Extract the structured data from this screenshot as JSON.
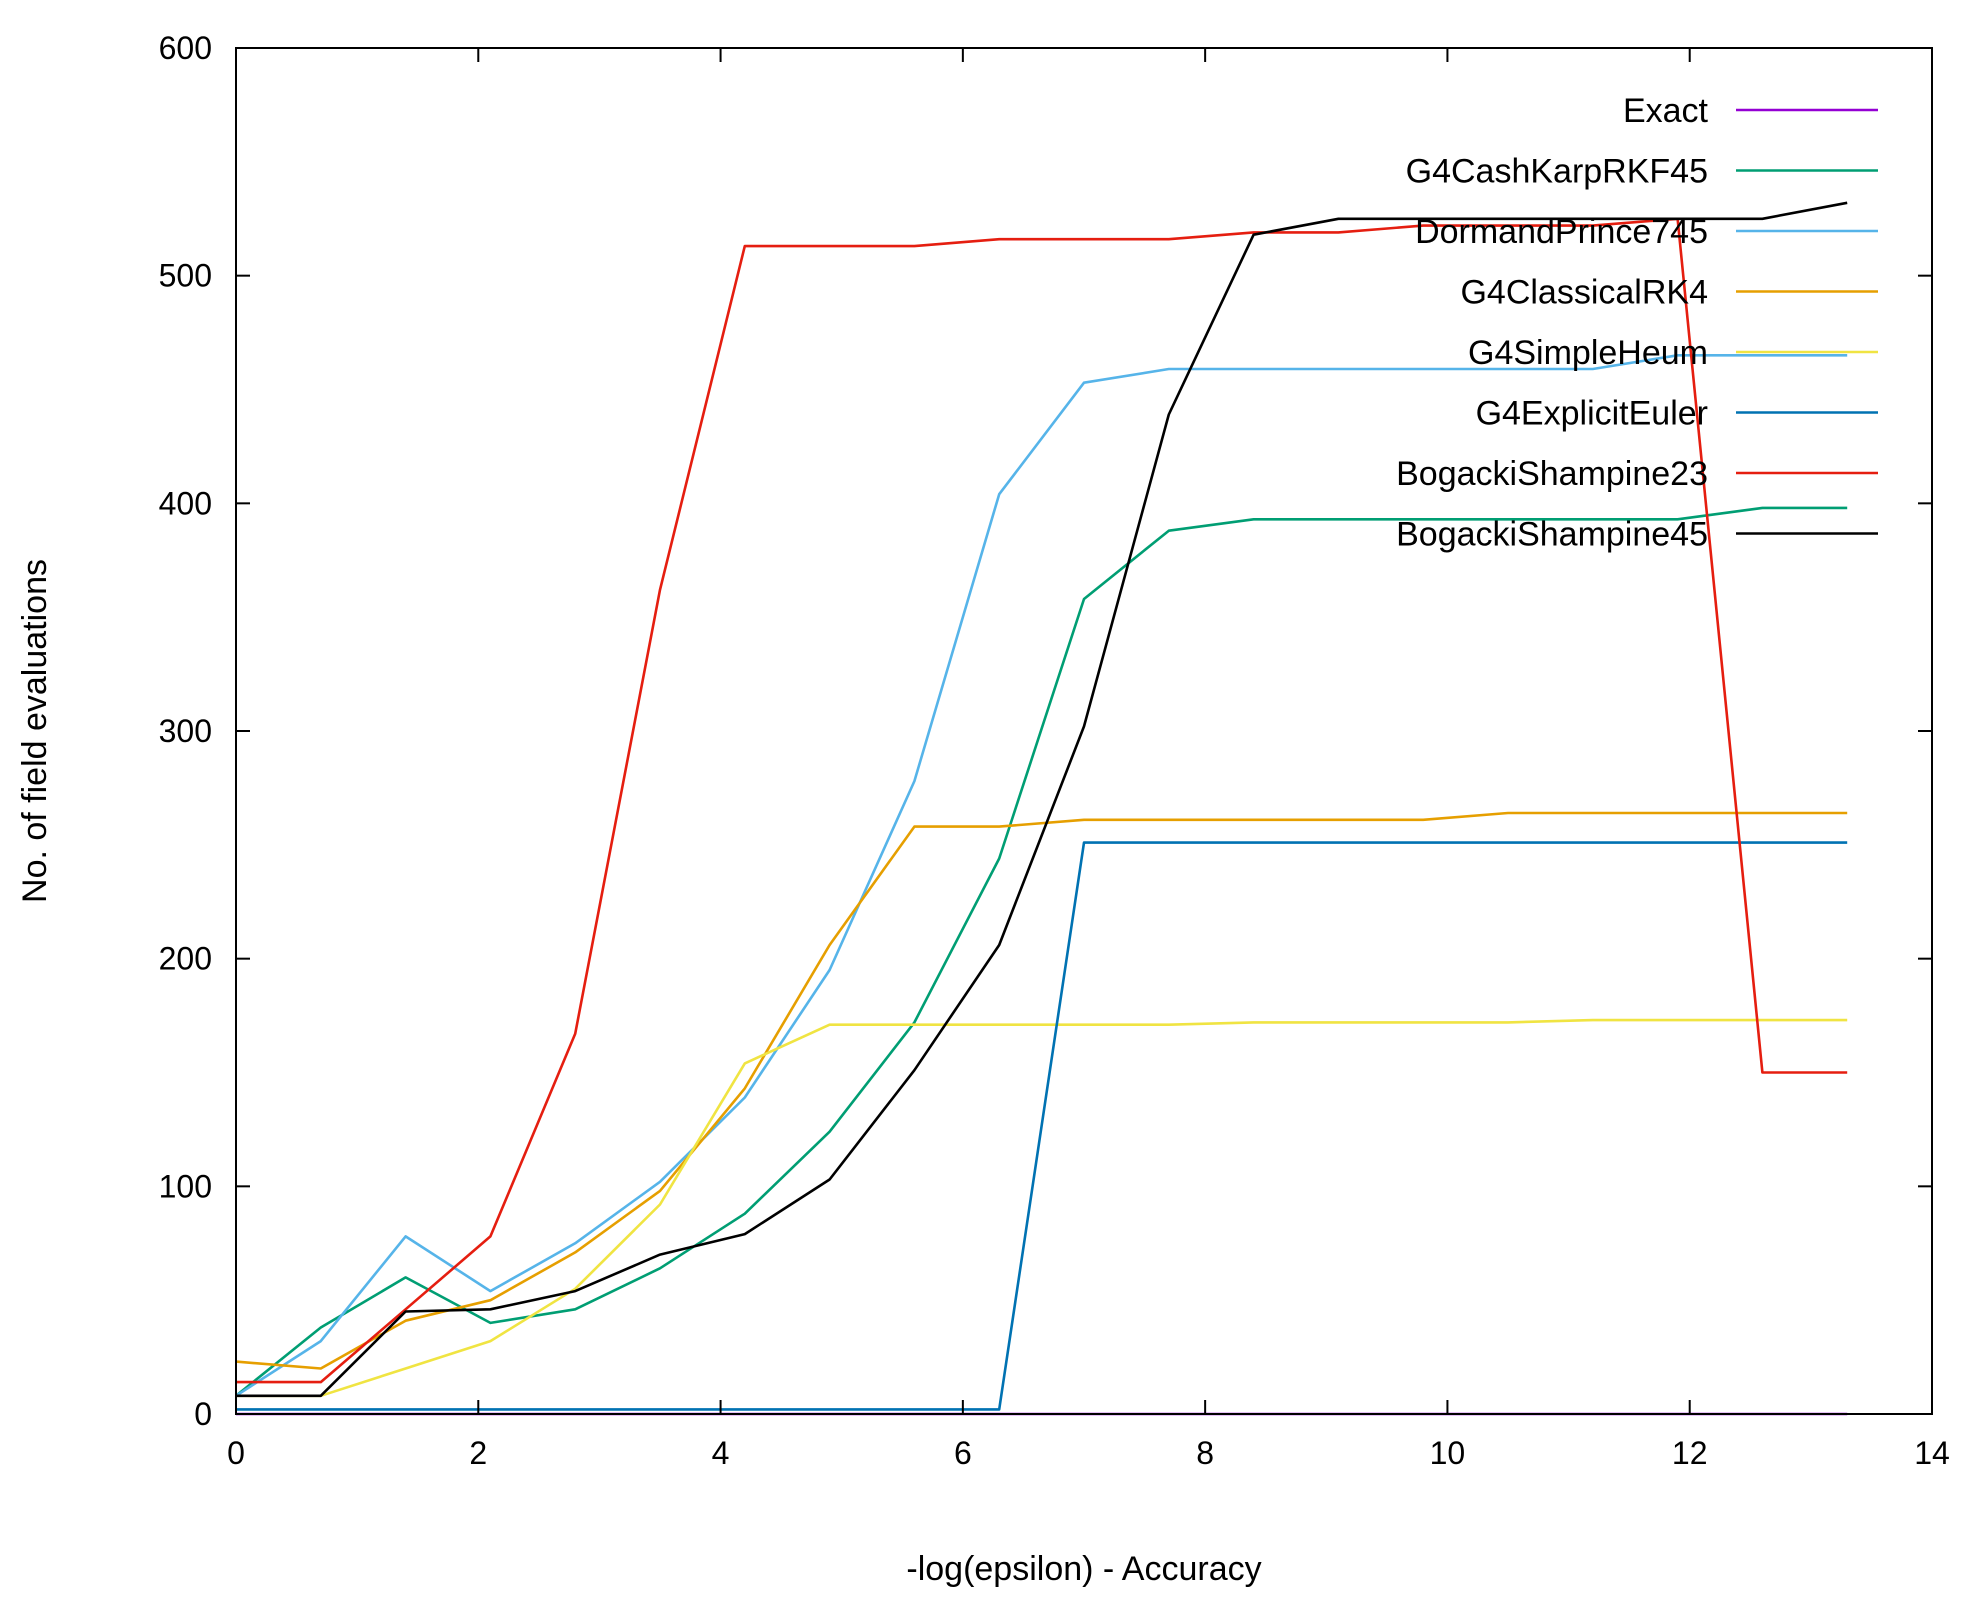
{
  "chart_data": {
    "type": "line",
    "title": "",
    "xlabel": "-log(epsilon) - Accuracy",
    "ylabel": "No. of field evaluations",
    "xlim": [
      0,
      14
    ],
    "ylim": [
      0,
      600
    ],
    "xticks": [
      0,
      2,
      4,
      6,
      8,
      10,
      12,
      14
    ],
    "yticks": [
      0,
      100,
      200,
      300,
      400,
      500,
      600
    ],
    "xtick_labels": [
      "0",
      "2",
      "4",
      "6",
      "8",
      "10",
      "12",
      "14"
    ],
    "ytick_labels": [
      "0",
      "100",
      "200",
      "300",
      "400",
      "500",
      "600"
    ],
    "grid": false,
    "legend_position": "top-right",
    "x": [
      0,
      0.7,
      1.4,
      2.1,
      2.8,
      3.5,
      4.2,
      4.9,
      5.6,
      6.3,
      7.0,
      7.7,
      8.4,
      9.1,
      9.8,
      10.5,
      11.2,
      11.9,
      12.6,
      13.3
    ],
    "series": [
      {
        "name": "Exact",
        "color": "#9400d3",
        "values": [
          0,
          0,
          0,
          0,
          0,
          0,
          0,
          0,
          0,
          0,
          0,
          0,
          0,
          0,
          0,
          0,
          0,
          0,
          0,
          0
        ]
      },
      {
        "name": "G4CashKarpRKF45",
        "color": "#009e73",
        "values": [
          8,
          38,
          60,
          40,
          46,
          64,
          88,
          124,
          172,
          244,
          358,
          388,
          393,
          393,
          393,
          393,
          393,
          393,
          398,
          398
        ]
      },
      {
        "name": "DormandPrince745",
        "color": "#56b4e9",
        "values": [
          8,
          32,
          78,
          54,
          75,
          102,
          139,
          195,
          278,
          404,
          453,
          459,
          459,
          459,
          459,
          459,
          459,
          465,
          465,
          465
        ]
      },
      {
        "name": "G4ClassicalRK4",
        "color": "#e69f00",
        "values": [
          23,
          20,
          41,
          50,
          71,
          98,
          143,
          206,
          258,
          258,
          261,
          261,
          261,
          261,
          261,
          264,
          264,
          264,
          264,
          264
        ]
      },
      {
        "name": "G4SimpleHeum",
        "color": "#f0e442",
        "values": [
          8,
          8,
          20,
          32,
          55,
          92,
          154,
          171,
          171,
          171,
          171,
          171,
          172,
          172,
          172,
          172,
          173,
          173,
          173,
          173
        ]
      },
      {
        "name": "G4ExplicitEuler",
        "color": "#0072b2",
        "values": [
          2,
          2,
          2,
          2,
          2,
          2,
          2,
          2,
          2,
          2,
          251,
          251,
          251,
          251,
          251,
          251,
          251,
          251,
          251,
          251
        ]
      },
      {
        "name": "BogackiShampine23",
        "color": "#e51e10",
        "values": [
          14,
          14,
          46,
          78,
          167,
          362,
          513,
          513,
          513,
          516,
          516,
          516,
          519,
          519,
          522,
          522,
          522,
          525,
          150,
          150
        ]
      },
      {
        "name": "BogackiShampine45",
        "color": "#000000",
        "values": [
          8,
          8,
          45,
          46,
          54,
          70,
          79,
          103,
          151,
          206,
          302,
          439,
          518,
          525,
          525,
          525,
          525,
          525,
          525,
          532
        ]
      }
    ]
  }
}
